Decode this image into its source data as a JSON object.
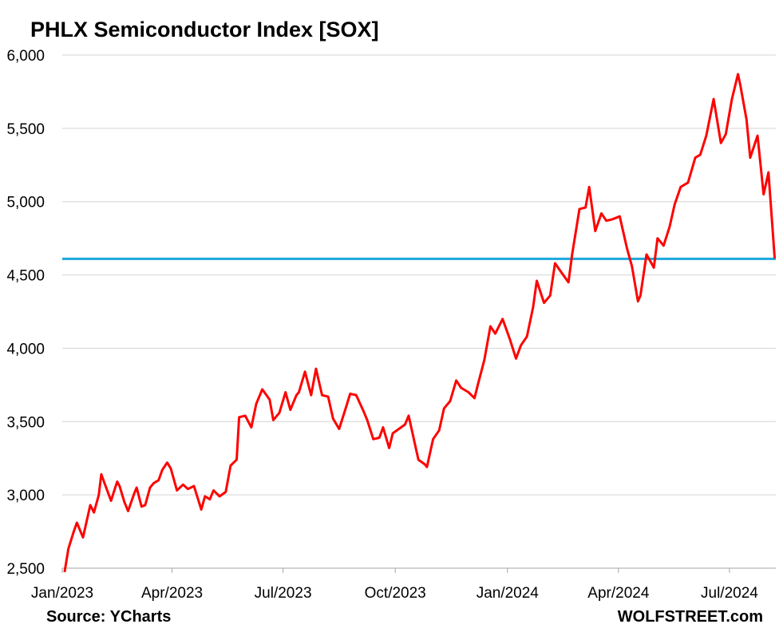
{
  "chart_data": {
    "type": "line",
    "title": "PHLX Semiconductor Index [SOX]",
    "source": "Source: YCharts",
    "brand": "WOLFSTREET.com",
    "xlabel": "",
    "ylabel": "",
    "ylim": [
      2500,
      6000
    ],
    "yticks": [
      2500,
      3000,
      3500,
      4000,
      4500,
      5000,
      5500,
      6000
    ],
    "ytick_labels": [
      "2,500",
      "3,000",
      "3,500",
      "4,000",
      "4,500",
      "5,000",
      "5,500",
      "6,000"
    ],
    "xlim": [
      "2023-01-01",
      "2024-08-08"
    ],
    "xticks": [
      "2023-01-01",
      "2023-04-01",
      "2023-07-01",
      "2023-10-01",
      "2024-01-01",
      "2024-04-01",
      "2024-07-01"
    ],
    "xtick_labels": [
      "Jan/2023",
      "Apr/2023",
      "Jul/2023",
      "Oct/2023",
      "Jan/2024",
      "Apr/2024",
      "Jul/2024"
    ],
    "grid": true,
    "reference_line": {
      "value": 4610,
      "color": "#1aa7de"
    },
    "series": [
      {
        "color": "#ff0000",
        "x": [
          "2023-01-03",
          "2023-01-06",
          "2023-01-10",
          "2023-01-13",
          "2023-01-18",
          "2023-01-24",
          "2023-01-27",
          "2023-01-31",
          "2023-02-02",
          "2023-02-06",
          "2023-02-10",
          "2023-02-15",
          "2023-02-17",
          "2023-02-21",
          "2023-02-24",
          "2023-03-01",
          "2023-03-03",
          "2023-03-07",
          "2023-03-10",
          "2023-03-14",
          "2023-03-17",
          "2023-03-21",
          "2023-03-24",
          "2023-03-28",
          "2023-03-31",
          "2023-04-05",
          "2023-04-10",
          "2023-04-14",
          "2023-04-19",
          "2023-04-25",
          "2023-04-28",
          "2023-05-02",
          "2023-05-05",
          "2023-05-10",
          "2023-05-15",
          "2023-05-19",
          "2023-05-24",
          "2023-05-26",
          "2023-05-31",
          "2023-06-05",
          "2023-06-09",
          "2023-06-14",
          "2023-06-20",
          "2023-06-23",
          "2023-06-28",
          "2023-07-03",
          "2023-07-07",
          "2023-07-12",
          "2023-07-14",
          "2023-07-19",
          "2023-07-24",
          "2023-07-28",
          "2023-08-02",
          "2023-08-07",
          "2023-08-11",
          "2023-08-16",
          "2023-08-21",
          "2023-08-25",
          "2023-08-30",
          "2023-09-05",
          "2023-09-08",
          "2023-09-13",
          "2023-09-18",
          "2023-09-21",
          "2023-09-26",
          "2023-09-29",
          "2023-10-04",
          "2023-10-09",
          "2023-10-12",
          "2023-10-17",
          "2023-10-20",
          "2023-10-25",
          "2023-10-27",
          "2023-11-01",
          "2023-11-06",
          "2023-11-10",
          "2023-11-15",
          "2023-11-20",
          "2023-11-24",
          "2023-11-30",
          "2023-12-05",
          "2023-12-08",
          "2023-12-13",
          "2023-12-18",
          "2023-12-22",
          "2023-12-28",
          "2024-01-03",
          "2024-01-08",
          "2024-01-12",
          "2024-01-17",
          "2024-01-22",
          "2024-01-25",
          "2024-01-31",
          "2024-02-05",
          "2024-02-09",
          "2024-02-14",
          "2024-02-20",
          "2024-02-23",
          "2024-02-29",
          "2024-03-05",
          "2024-03-08",
          "2024-03-13",
          "2024-03-18",
          "2024-03-22",
          "2024-03-27",
          "2024-04-02",
          "2024-04-08",
          "2024-04-12",
          "2024-04-17",
          "2024-04-19",
          "2024-04-24",
          "2024-04-30",
          "2024-05-03",
          "2024-05-08",
          "2024-05-13",
          "2024-05-17",
          "2024-05-22",
          "2024-05-28",
          "2024-06-03",
          "2024-06-07",
          "2024-06-12",
          "2024-06-18",
          "2024-06-24",
          "2024-06-28",
          "2024-07-03",
          "2024-07-08",
          "2024-07-10",
          "2024-07-15",
          "2024-07-18",
          "2024-07-24",
          "2024-07-29",
          "2024-08-02",
          "2024-08-07"
        ],
        "y": [
          2480,
          2630,
          2740,
          2810,
          2710,
          2930,
          2880,
          3000,
          3140,
          3050,
          2960,
          3090,
          3060,
          2950,
          2890,
          3010,
          3050,
          2920,
          2930,
          3050,
          3080,
          3100,
          3170,
          3220,
          3180,
          3030,
          3070,
          3040,
          3060,
          2900,
          2990,
          2970,
          3030,
          2990,
          3020,
          3200,
          3240,
          3530,
          3540,
          3460,
          3620,
          3720,
          3650,
          3510,
          3560,
          3700,
          3580,
          3680,
          3700,
          3840,
          3680,
          3860,
          3680,
          3670,
          3520,
          3450,
          3580,
          3690,
          3680,
          3570,
          3510,
          3380,
          3390,
          3460,
          3320,
          3420,
          3450,
          3480,
          3540,
          3350,
          3240,
          3210,
          3190,
          3380,
          3440,
          3590,
          3640,
          3780,
          3730,
          3700,
          3660,
          3760,
          3920,
          4150,
          4100,
          4200,
          4060,
          3930,
          4020,
          4080,
          4280,
          4460,
          4310,
          4360,
          4580,
          4520,
          4450,
          4640,
          4950,
          4960,
          5100,
          4800,
          4920,
          4870,
          4880,
          4900,
          4680,
          4560,
          4320,
          4360,
          4640,
          4550,
          4750,
          4700,
          4830,
          4980,
          5100,
          5130,
          5300,
          5320,
          5450,
          5700,
          5400,
          5460,
          5700,
          5870,
          5790,
          5560,
          5300,
          5450,
          5050,
          5200,
          4620
        ]
      }
    ]
  }
}
